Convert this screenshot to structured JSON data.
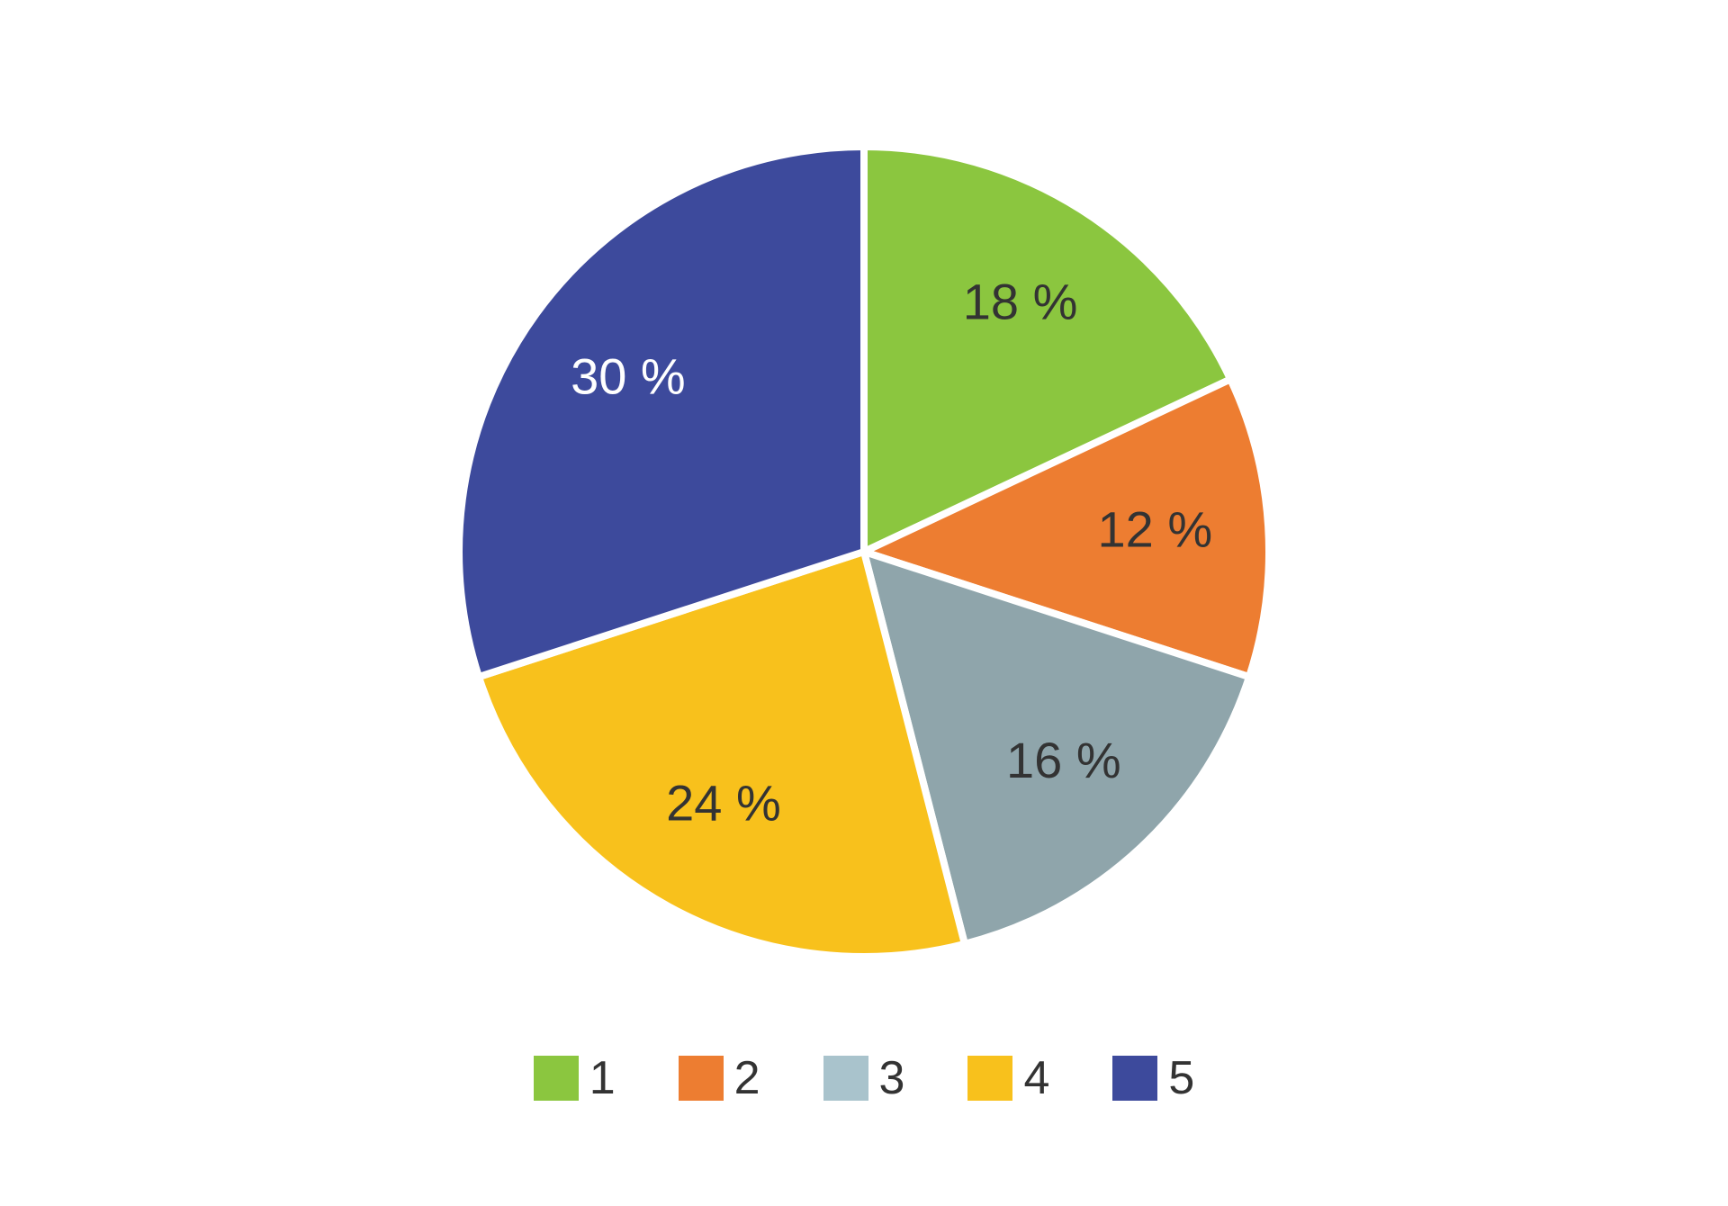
{
  "chart": {
    "type": "pie",
    "background_color": "#ffffff",
    "stroke_color": "#ffffff",
    "stroke_width": 8,
    "radius": 450,
    "start_angle": 0,
    "label_fontsize": 56,
    "label_color_dark": "#333333",
    "label_color_light": "#ffffff",
    "label_radius_offset": 50,
    "slices": [
      {
        "id": 1,
        "value": 18,
        "label": "18 %",
        "color": "#8bc63f",
        "label_color": "dark"
      },
      {
        "id": 2,
        "value": 12,
        "label": "12 %",
        "color": "#ed7d31",
        "label_color": "dark"
      },
      {
        "id": 3,
        "value": 16,
        "label": "16 %",
        "color": "#8fa5ab",
        "label_color": "dark"
      },
      {
        "id": 4,
        "value": 24,
        "label": "24 %",
        "color": "#f8c11c",
        "label_color": "dark"
      },
      {
        "id": 5,
        "value": 30,
        "label": "30 %",
        "color": "#3d4a9c",
        "label_color": "light"
      }
    ]
  },
  "legend": {
    "swatch_size": 50,
    "fontsize": 52,
    "label_color": "#333333",
    "gap": 70,
    "items": [
      {
        "label": "1",
        "color": "#8bc63f"
      },
      {
        "label": "2",
        "color": "#ed7d31"
      },
      {
        "label": "3",
        "color": "#a9c3cc"
      },
      {
        "label": "4",
        "color": "#f8c11c"
      },
      {
        "label": "5",
        "color": "#3d4a9c"
      }
    ]
  }
}
